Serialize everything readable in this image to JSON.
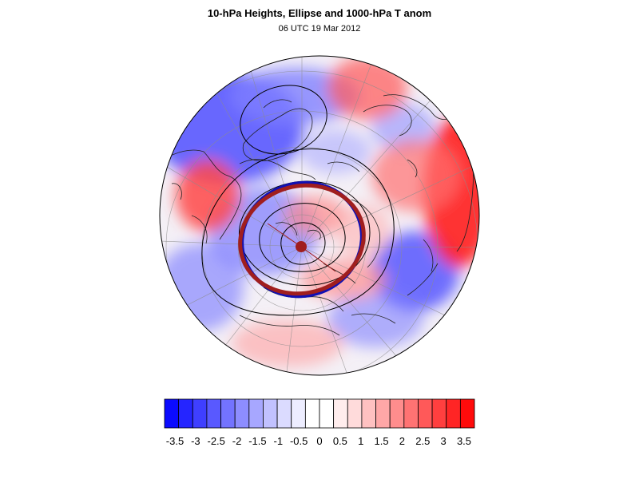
{
  "header": {
    "title": "10-hPa Heights, Ellipse and 1000-hPa T anom",
    "subtitle": "06 UTC 19 Mar 2012"
  },
  "map": {
    "projection": "polar-stereographic",
    "hemisphere": "northern",
    "contour_color": "#000000",
    "ellipse_colors": [
      "#a01e1e",
      "#1010b4"
    ]
  },
  "colorbar": {
    "labels": [
      "-3.5",
      "-3",
      "-2.5",
      "-2",
      "-1.5",
      "-1",
      "-0.5",
      "0",
      "0.5",
      "1",
      "1.5",
      "2",
      "2.5",
      "3",
      "3.5"
    ],
    "colors": [
      "#0b0bff",
      "#2525ff",
      "#3f3fff",
      "#5959ff",
      "#7373ff",
      "#8d8dff",
      "#a7a7ff",
      "#c1c1ff",
      "#dbdbff",
      "#ededff",
      "#ffffff",
      "#ffffff",
      "#ffeded",
      "#ffdbdb",
      "#ffc1c1",
      "#ffa7a7",
      "#ff8d8d",
      "#ff7373",
      "#ff5959",
      "#ff3f3f",
      "#ff2525",
      "#ff0b0b"
    ]
  }
}
